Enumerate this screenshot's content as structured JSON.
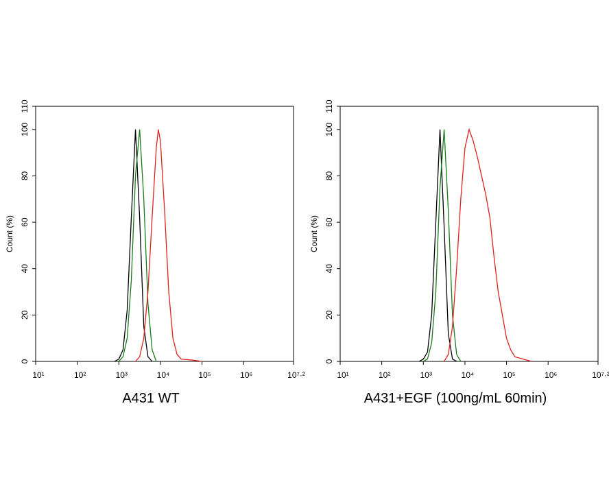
{
  "chart_data": [
    {
      "type": "line",
      "title": "A431 WT",
      "ylabel": "Count (%)",
      "log_x": true,
      "xlim": [
        10,
        15848932
      ],
      "ylim": [
        0,
        110
      ],
      "xticks": [
        {
          "value": 10,
          "label": "10¹"
        },
        {
          "value": 100,
          "label": "10²"
        },
        {
          "value": 1000,
          "label": "10³"
        },
        {
          "value": 10000,
          "label": "10⁴"
        },
        {
          "value": 100000,
          "label": "10⁵"
        },
        {
          "value": 1000000,
          "label": "10⁶"
        },
        {
          "value": 15848932,
          "label": "10⁷·²"
        }
      ],
      "yticks": [
        0,
        20,
        40,
        60,
        80,
        100,
        110
      ],
      "series": [
        {
          "color": "#000000",
          "x": [
            794,
            1000,
            1259,
            1585,
            1995,
            2512,
            3162,
            3981,
            5012,
            6310
          ],
          "values": [
            0,
            1,
            5,
            22,
            62,
            100,
            62,
            15,
            2,
            0
          ]
        },
        {
          "color": "#1a7a1a",
          "x": [
            1000,
            1259,
            1585,
            1995,
            2512,
            3162,
            3981,
            5012,
            6310,
            7943
          ],
          "values": [
            0,
            2,
            10,
            35,
            80,
            100,
            70,
            25,
            5,
            0
          ]
        },
        {
          "color": "#e0201c",
          "x": [
            2512,
            3162,
            3981,
            5012,
            6310,
            7943,
            8913,
            10000,
            12589,
            15849,
            19953,
            25119,
            31623,
            63096,
            100000
          ],
          "values": [
            0,
            2,
            10,
            30,
            62,
            92,
            100,
            95,
            65,
            30,
            10,
            3,
            1,
            0.5,
            0
          ]
        }
      ]
    },
    {
      "type": "line",
      "title": "A431+EGF (100ng/mL 60min)",
      "ylabel": "Count (%)",
      "log_x": true,
      "xlim": [
        10,
        15848932
      ],
      "ylim": [
        0,
        110
      ],
      "xticks": [
        {
          "value": 10,
          "label": "10¹"
        },
        {
          "value": 100,
          "label": "10²"
        },
        {
          "value": 1000,
          "label": "10³"
        },
        {
          "value": 10000,
          "label": "10⁴"
        },
        {
          "value": 100000,
          "label": "10⁵"
        },
        {
          "value": 1000000,
          "label": "10⁶"
        },
        {
          "value": 15848932,
          "label": "10⁷·²"
        }
      ],
      "yticks": [
        0,
        20,
        40,
        60,
        80,
        100,
        110
      ],
      "series": [
        {
          "color": "#000000",
          "x": [
            794,
            1000,
            1259,
            1585,
            1995,
            2512,
            3162,
            3981,
            5012,
            6310
          ],
          "values": [
            0,
            1,
            4,
            20,
            60,
            100,
            58,
            12,
            1,
            0
          ]
        },
        {
          "color": "#1a7a1a",
          "x": [
            1000,
            1259,
            1585,
            1995,
            2512,
            3162,
            3981,
            5012,
            6310,
            7943
          ],
          "values": [
            0,
            1,
            8,
            30,
            75,
            100,
            65,
            20,
            3,
            0
          ]
        },
        {
          "color": "#e0201c",
          "x": [
            3162,
            3981,
            5012,
            6310,
            7943,
            10000,
            12589,
            15849,
            19953,
            25119,
            31623,
            39811,
            50119,
            63096,
            79433,
            100000,
            125893,
            158489,
            251189,
            398107
          ],
          "values": [
            0,
            3,
            15,
            40,
            70,
            92,
            100,
            95,
            88,
            80,
            72,
            62,
            45,
            30,
            20,
            10,
            5,
            2,
            1,
            0
          ]
        }
      ]
    }
  ]
}
